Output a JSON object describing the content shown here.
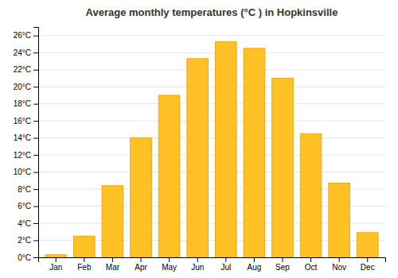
{
  "chart_data": {
    "type": "bar",
    "title": "Average monthly temperatures (°C ) in Hopkinsville",
    "categories": [
      "Jan",
      "Feb",
      "Mar",
      "Apr",
      "May",
      "Jun",
      "Jul",
      "Aug",
      "Sep",
      "Oct",
      "Nov",
      "Dec"
    ],
    "values": [
      0.3,
      2.5,
      8.4,
      14.0,
      19.0,
      23.3,
      25.3,
      24.5,
      21.0,
      14.5,
      8.7,
      2.9
    ],
    "color": "#FFC125",
    "ylim": [
      0,
      27
    ],
    "yticks": [
      {
        "value": 0,
        "label": "0°C"
      },
      {
        "value": 2,
        "label": "2°C"
      },
      {
        "value": 4,
        "label": "4°C"
      },
      {
        "value": 6,
        "label": "6°C"
      },
      {
        "value": 8,
        "label": "8°C"
      },
      {
        "value": 10,
        "label": "10°C"
      },
      {
        "value": 12,
        "label": "12°C"
      },
      {
        "value": 14,
        "label": "14°C"
      },
      {
        "value": 16,
        "label": "16°C"
      },
      {
        "value": 18,
        "label": "18°C"
      },
      {
        "value": 20,
        "label": "20°C"
      },
      {
        "value": 22,
        "label": "22°C"
      },
      {
        "value": 24,
        "label": "24°C"
      },
      {
        "value": 26,
        "label": "26°C"
      }
    ],
    "grid": true
  }
}
